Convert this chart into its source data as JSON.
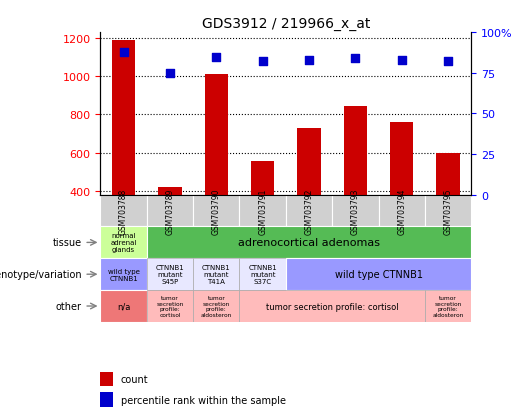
{
  "title": "GDS3912 / 219966_x_at",
  "samples": [
    "GSM703788",
    "GSM703789",
    "GSM703790",
    "GSM703791",
    "GSM703792",
    "GSM703793",
    "GSM703794",
    "GSM703795"
  ],
  "counts": [
    1190,
    420,
    1010,
    555,
    730,
    845,
    760,
    600
  ],
  "percentile_ranks": [
    88,
    75,
    85,
    82,
    83,
    84,
    83,
    82
  ],
  "ylim_left": [
    380,
    1230
  ],
  "ylim_right": [
    0,
    100
  ],
  "yticks_left": [
    400,
    600,
    800,
    1000,
    1200
  ],
  "yticks_right": [
    0,
    25,
    50,
    75,
    100
  ],
  "bar_color": "#cc0000",
  "dot_color": "#0000cc",
  "sample_box_color": "#d0d0d0",
  "tissue_col0_color": "#ccff99",
  "tissue_col1_color": "#55bb55",
  "genotype_purple_color": "#9999ff",
  "genotype_white_color": "#e8e8ff",
  "other_red_color": "#ee7777",
  "other_pink_color": "#ffbbbb",
  "legend_count_color": "#cc0000",
  "legend_pct_color": "#0000cc",
  "row_labels": [
    "tissue",
    "genotype/variation",
    "other"
  ],
  "background_color": "#ffffff"
}
